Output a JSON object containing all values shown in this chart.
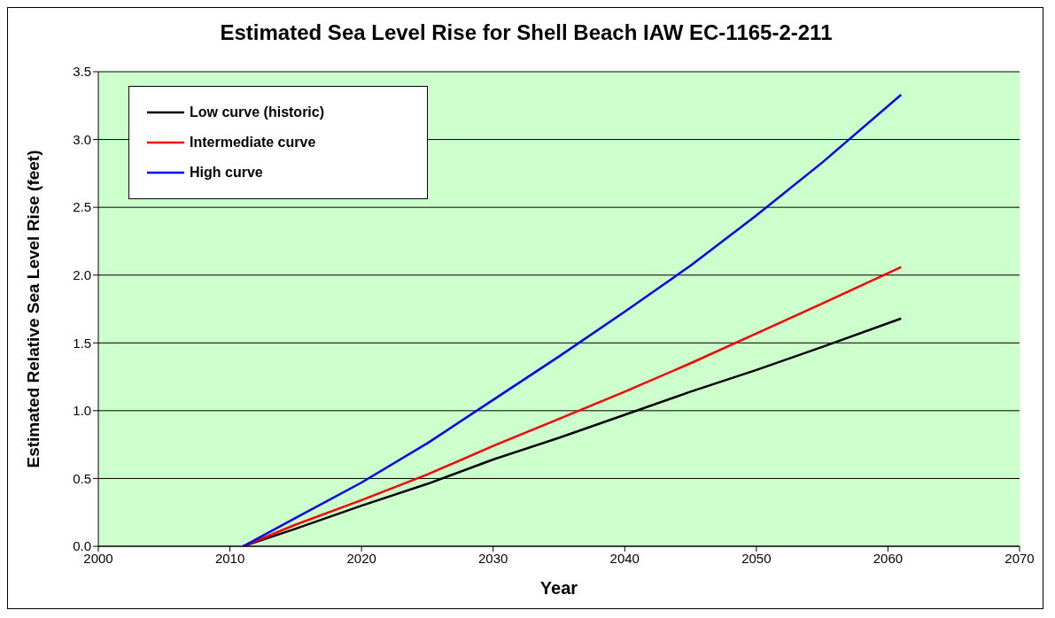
{
  "chart_data": {
    "type": "line",
    "title": "Estimated Sea Level Rise for Shell Beach  IAW EC-1165-2-211",
    "xlabel": "Year",
    "ylabel": "Estimated Relative Sea Level Rise (feet)",
    "x": [
      2011,
      2015,
      2020,
      2025,
      2030,
      2035,
      2040,
      2045,
      2050,
      2055,
      2061
    ],
    "series": [
      {
        "name": "Low curve (historic)",
        "color": "#000000",
        "values": [
          0,
          0.13,
          0.3,
          0.46,
          0.64,
          0.8,
          0.97,
          1.14,
          1.3,
          1.47,
          1.68
        ]
      },
      {
        "name": "Intermediate curve",
        "color": "#ff0000",
        "values": [
          0,
          0.16,
          0.34,
          0.53,
          0.74,
          0.94,
          1.14,
          1.35,
          1.57,
          1.79,
          2.06
        ]
      },
      {
        "name": "High curve",
        "color": "#0000ff",
        "values": [
          0,
          0.21,
          0.47,
          0.76,
          1.08,
          1.4,
          1.73,
          2.07,
          2.44,
          2.83,
          3.33
        ]
      }
    ],
    "xlim": [
      2000,
      2070
    ],
    "xticks": [
      2000,
      2010,
      2020,
      2030,
      2040,
      2050,
      2060,
      2070
    ],
    "ylim": [
      0,
      3.5
    ],
    "yticks": [
      {
        "value": 0,
        "label": "0.0"
      },
      {
        "value": 0.5,
        "label": "0.5"
      },
      {
        "value": 1,
        "label": "1.0"
      },
      {
        "value": 1.5,
        "label": "1.5"
      },
      {
        "value": 2,
        "label": "2.0"
      },
      {
        "value": 2.5,
        "label": "2.5"
      },
      {
        "value": 3,
        "label": "3.0"
      },
      {
        "value": 3.5,
        "label": "3.5"
      }
    ],
    "grid": "y",
    "legend": "top left",
    "marker": "none",
    "line_style": "solid"
  }
}
